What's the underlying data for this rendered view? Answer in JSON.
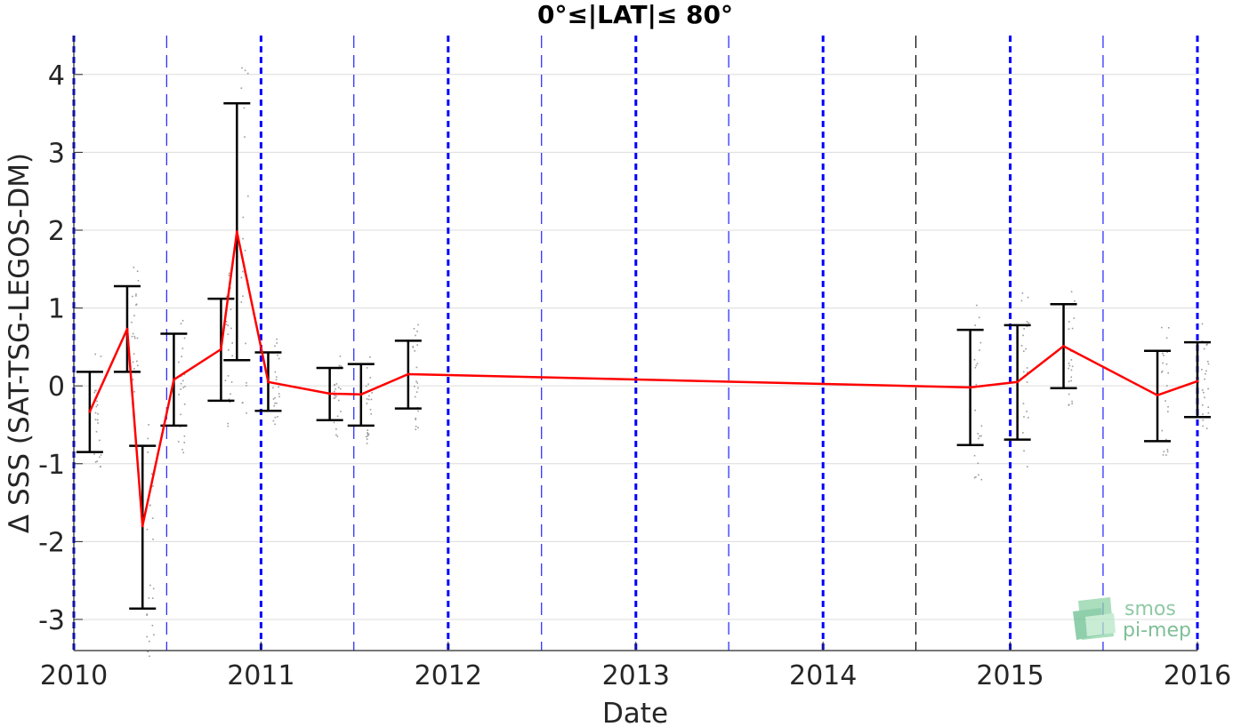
{
  "chart_data": {
    "type": "line",
    "title": "0°≤|LAT|≤ 80°",
    "xlabel": "Date",
    "ylabel": "Δ SSS (SAT-TSG-LEGOS-DM)",
    "xlim": [
      "2010-01-01",
      "2016-01-01"
    ],
    "ylim": [
      -3.4,
      4.5
    ],
    "x_tick_labels": [
      "2010",
      "2011",
      "2012",
      "2013",
      "2014",
      "2015",
      "2016"
    ],
    "y_tick_labels": [
      "-3",
      "-2",
      "-1",
      "0",
      "1",
      "2",
      "3",
      "4"
    ],
    "grid": "horizontal",
    "year_boundary_lines": [
      "2010-01-01",
      "2011-01-01",
      "2012-01-01",
      "2013-01-01",
      "2014-01-01",
      "2015-01-01",
      "2016-01-01"
    ],
    "half_year_lines": [
      "2010-07-01",
      "2011-07-01",
      "2012-07-01",
      "2013-07-01",
      "2014-07-01",
      "2015-07-01"
    ],
    "series": [
      {
        "kind": "monthly_mean",
        "color": "#ff0000",
        "points": [
          {
            "x": "2010-02-01",
            "y": -0.33,
            "low": -0.85,
            "high": 0.18
          },
          {
            "x": "2010-04-15",
            "y": 0.73,
            "low": 0.18,
            "high": 1.28
          },
          {
            "x": "2010-05-15",
            "y": -1.8,
            "low": -2.86,
            "high": -0.77
          },
          {
            "x": "2010-07-15",
            "y": 0.08,
            "low": -0.51,
            "high": 0.67
          },
          {
            "x": "2010-10-15",
            "y": 0.47,
            "low": -0.19,
            "high": 1.12
          },
          {
            "x": "2010-11-15",
            "y": 1.98,
            "low": 0.33,
            "high": 3.63
          },
          {
            "x": "2011-01-15",
            "y": 0.05,
            "low": -0.32,
            "high": 0.43
          },
          {
            "x": "2011-05-15",
            "y": -0.1,
            "low": -0.44,
            "high": 0.23
          },
          {
            "x": "2011-07-15",
            "y": -0.11,
            "low": -0.51,
            "high": 0.28
          },
          {
            "x": "2011-10-15",
            "y": 0.15,
            "low": -0.29,
            "high": 0.58
          },
          {
            "x": "2014-10-15",
            "y": -0.02,
            "low": -0.76,
            "high": 0.72
          },
          {
            "x": "2015-01-15",
            "y": 0.05,
            "low": -0.69,
            "high": 0.78
          },
          {
            "x": "2015-04-15",
            "y": 0.51,
            "low": -0.03,
            "high": 1.05
          },
          {
            "x": "2015-10-15",
            "y": -0.12,
            "low": -0.71,
            "high": 0.45
          },
          {
            "x": "2016-01-01",
            "y": 0.06,
            "low": -0.4,
            "high": 0.56
          }
        ]
      }
    ]
  },
  "logo": {
    "line1": "smos",
    "line2": "pi-mep"
  }
}
